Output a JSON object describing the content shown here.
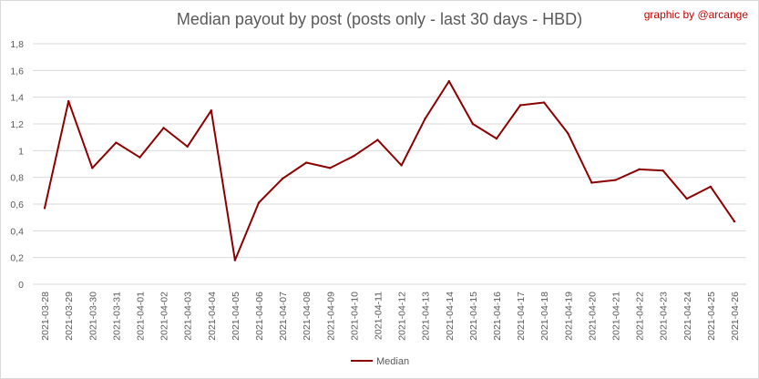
{
  "title": "Median payout by post (posts only - last 30 days - HBD)",
  "credit": "graphic by @arcange",
  "colors": {
    "series": "#8b0000",
    "grid": "#d9d9d9",
    "text": "#595959",
    "credit": "#c00000"
  },
  "chart_data": {
    "type": "line",
    "title": "Median payout by post (posts only - last 30 days - HBD)",
    "xlabel": "",
    "ylabel": "",
    "ylim": [
      0,
      1.8
    ],
    "y_ticks": [
      "0",
      "0,2",
      "0,4",
      "0,6",
      "0,8",
      "1",
      "1,2",
      "1,4",
      "1,6",
      "1,8"
    ],
    "grid": "horizontal",
    "legend": "bottom",
    "categories": [
      "2021-03-28",
      "2021-03-29",
      "2021-03-30",
      "2021-03-31",
      "2021-04-01",
      "2021-04-02",
      "2021-04-03",
      "2021-04-04",
      "2021-04-05",
      "2021-04-06",
      "2021-04-07",
      "2021-04-08",
      "2021-04-09",
      "2021-04-10",
      "2021-04-11",
      "2021-04-12",
      "2021-04-13",
      "2021-04-14",
      "2021-04-15",
      "2021-04-16",
      "2021-04-17",
      "2021-04-18",
      "2021-04-19",
      "2021-04-20",
      "2021-04-21",
      "2021-04-22",
      "2021-04-23",
      "2021-04-24",
      "2021-04-25",
      "2021-04-26"
    ],
    "series": [
      {
        "name": "Median",
        "values": [
          0.57,
          1.37,
          0.87,
          1.06,
          0.95,
          1.17,
          1.03,
          1.3,
          0.18,
          0.61,
          0.79,
          0.91,
          0.87,
          0.96,
          1.08,
          0.89,
          1.24,
          1.52,
          1.2,
          1.09,
          1.34,
          1.36,
          1.13,
          0.76,
          0.78,
          0.86,
          0.85,
          0.64,
          0.73,
          0.47
        ]
      }
    ]
  }
}
